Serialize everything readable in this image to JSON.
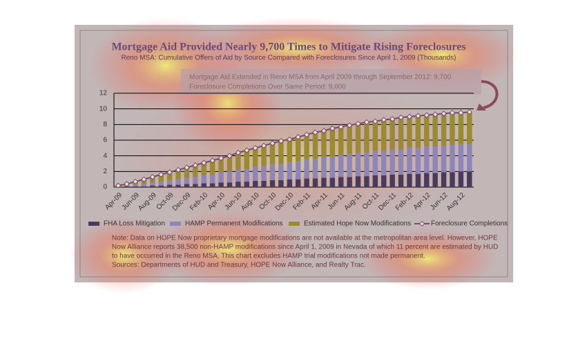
{
  "chart_data": {
    "type": "bar-line",
    "title": "Mortgage Aid Provided Nearly 9,700 Times to Mitigate Rising Foreclosures",
    "subtitle": "Reno MSA: Cumulative Offers of Aid by Source Compared with Foreclosures Since April 1, 2009  (Thousands)",
    "annotation": [
      "Mortgage Aid Extended in Reno MSA from April 2009 through September 2012: 9,700",
      "Foreclosure Completions Over Same Period: 9,600"
    ],
    "notes": [
      "Note: Data on HOPE Now proprietary mortgage modifications are not available at the metropolitan area level. However, HOPE",
      "Now Alliance reports 38,500 non-HAMP modifications since April 1, 2009 in Nevada of which 11 percent are estimated by HUD",
      "to have occurred in the Reno MSA. This chart excludes HAMP trial modifications not made permanent.",
      "Sources: Departments of HUD and Treasury, HOPE Now Alliance, and Realty Trac."
    ],
    "categories": [
      "Apr-09",
      null,
      "Jun-09",
      null,
      "Aug-09",
      null,
      "Oct-09",
      null,
      "Dec-09",
      null,
      "Feb-10",
      null,
      "Apr-10",
      null,
      "Jun-10",
      null,
      "Aug-10",
      null,
      "Oct-10",
      null,
      "Dec-10",
      null,
      "Feb-11",
      null,
      "Apr-11",
      null,
      "Jun-11",
      null,
      "Aug-11",
      null,
      "Oct-11",
      null,
      "Dec-11",
      null,
      "Feb-12",
      null,
      "Apr-12",
      null,
      "Jun-12",
      null,
      "Aug-12",
      null
    ],
    "series": [
      {
        "name": "FHA Loss Mitigation",
        "kind": "bar",
        "color": "#4a3a5c",
        "values": [
          0.0,
          0.1,
          0.1,
          0.1,
          0.2,
          0.2,
          0.3,
          0.3,
          0.4,
          0.4,
          0.5,
          0.5,
          0.6,
          0.6,
          0.7,
          0.7,
          0.8,
          0.8,
          0.9,
          0.9,
          1.0,
          1.0,
          1.1,
          1.1,
          1.2,
          1.2,
          1.3,
          1.3,
          1.4,
          1.4,
          1.5,
          1.5,
          1.6,
          1.6,
          1.7,
          1.7,
          1.8,
          1.8,
          1.9,
          1.9,
          2.0,
          2.0
        ]
      },
      {
        "name": "HAMP Permanent Modifications",
        "kind": "bar",
        "color": "#8e86b8",
        "values": [
          0.0,
          0.1,
          0.2,
          0.3,
          0.4,
          0.5,
          0.6,
          0.7,
          0.8,
          0.9,
          1.0,
          1.1,
          1.3,
          1.4,
          1.5,
          1.6,
          1.8,
          1.9,
          2.0,
          2.1,
          2.2,
          2.3,
          2.4,
          2.5,
          2.6,
          2.7,
          2.8,
          2.9,
          3.0,
          3.0,
          3.1,
          3.1,
          3.2,
          3.2,
          3.3,
          3.3,
          3.4,
          3.4,
          3.4,
          3.5,
          3.5,
          3.5
        ]
      },
      {
        "name": "Estimated Hope Now Modifications",
        "kind": "bar",
        "color": "#9a8a30",
        "values": [
          0.2,
          0.2,
          0.4,
          0.6,
          0.7,
          0.9,
          1.0,
          1.2,
          1.3,
          1.5,
          1.6,
          1.8,
          1.8,
          2.0,
          2.2,
          2.4,
          2.4,
          2.6,
          2.7,
          2.9,
          2.9,
          3.1,
          3.2,
          3.4,
          3.4,
          3.6,
          3.6,
          3.7,
          3.7,
          3.9,
          3.8,
          4.0,
          3.9,
          4.1,
          4.0,
          4.1,
          4.0,
          4.1,
          4.1,
          4.1,
          4.0,
          4.1
        ]
      },
      {
        "name": "Foreclosure Completions",
        "kind": "line",
        "color": "#7a4a6a",
        "values": [
          0.2,
          0.4,
          0.7,
          1.0,
          1.3,
          1.6,
          1.9,
          2.2,
          2.5,
          2.8,
          3.1,
          3.4,
          3.7,
          4.0,
          4.4,
          4.7,
          5.0,
          5.3,
          5.6,
          5.9,
          6.1,
          6.4,
          6.7,
          7.0,
          7.2,
          7.5,
          7.7,
          7.9,
          8.1,
          8.3,
          8.4,
          8.6,
          8.7,
          8.9,
          9.0,
          9.1,
          9.2,
          9.3,
          9.4,
          9.5,
          9.5,
          9.6
        ]
      }
    ],
    "ylim": [
      0,
      12
    ],
    "yticks": [
      0,
      2,
      4,
      6,
      8,
      10,
      12
    ],
    "grid": true
  }
}
